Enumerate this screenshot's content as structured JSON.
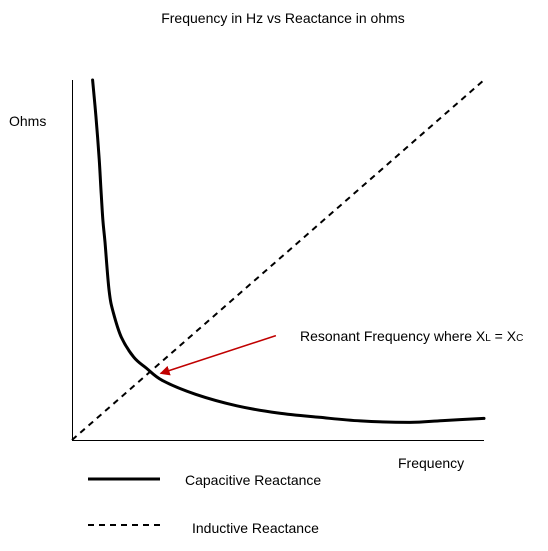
{
  "chart_data": {
    "type": "line",
    "title": "Frequency in Hz vs Reactance in ohms",
    "xlabel": "Frequency",
    "ylabel": "Ohms",
    "grid": false,
    "legend_position": "bottom-left",
    "xlim": [
      0,
      100
    ],
    "ylim": [
      0,
      100
    ],
    "series": [
      {
        "name": "Capacitive Reactance",
        "style": "solid",
        "color": "#000000",
        "x": [
          5,
          5.8,
          6.6,
          7.1,
          7.5,
          8.0,
          9,
          10,
          12,
          15,
          18,
          22,
          30,
          40,
          50,
          60,
          70,
          82,
          90,
          100
        ],
        "y": [
          100,
          90,
          78,
          68,
          61,
          55,
          41.5,
          35.5,
          28.5,
          23,
          20,
          16.5,
          12.7,
          9.5,
          7.5,
          6.3,
          5.3,
          4.9,
          5.4,
          6.0
        ]
      },
      {
        "name": "Inductive Reactance",
        "style": "dashed",
        "color": "#000000",
        "x": [
          0,
          100
        ],
        "y": [
          0,
          100
        ]
      }
    ],
    "annotations": [
      {
        "text_main": "Resonant Frequency where X",
        "sub1": "L",
        "text_mid": " = X",
        "sub2": "C",
        "arrow_color": "#c00000",
        "arrow_from": [
          49.5,
          29
        ],
        "arrow_to": [
          21.5,
          18.5
        ]
      }
    ]
  }
}
